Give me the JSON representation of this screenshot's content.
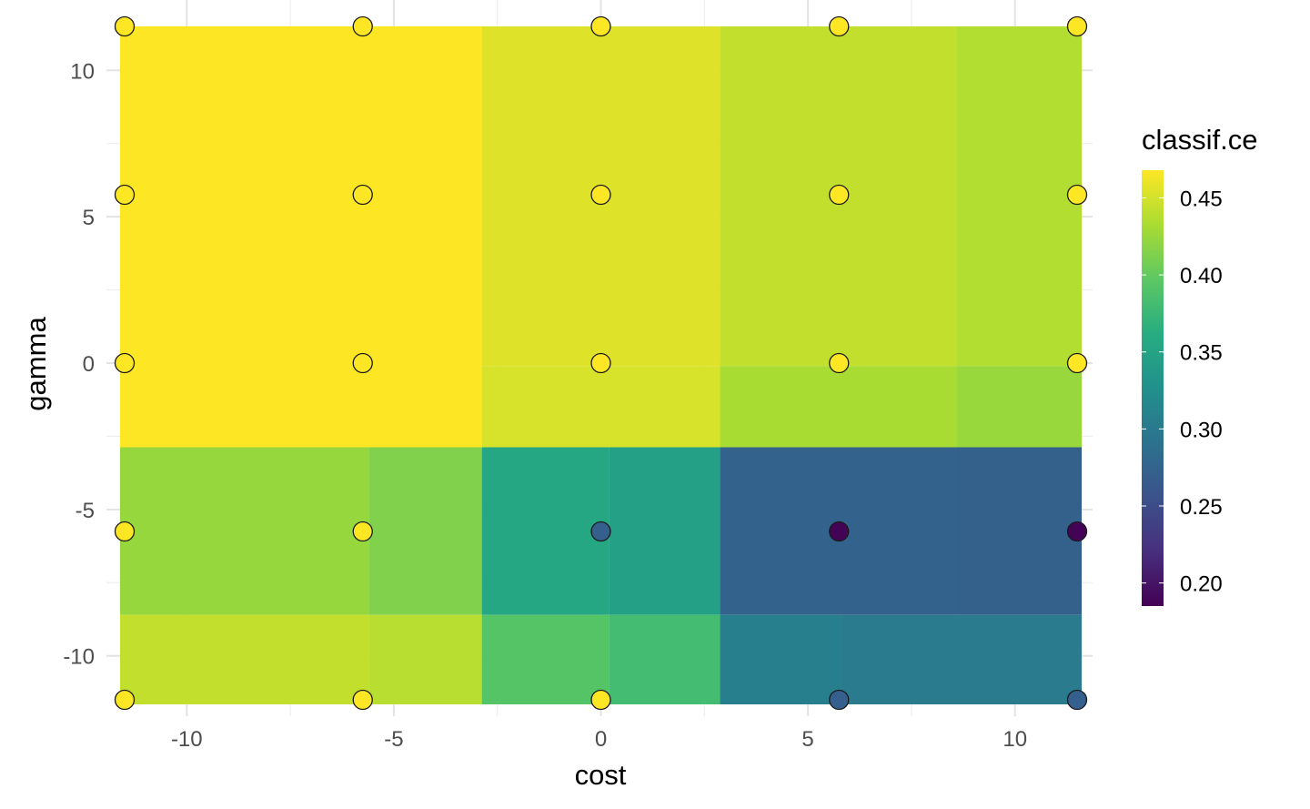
{
  "chart_data": {
    "type": "heatmap",
    "title": "",
    "xlabel": "cost",
    "ylabel": "gamma",
    "xlim": [
      -11.5,
      11.5
    ],
    "ylim": [
      -11.5,
      11.5
    ],
    "x_ticks": [
      -10,
      -5,
      0,
      5,
      10
    ],
    "y_ticks": [
      -10,
      -5,
      0,
      5,
      10
    ],
    "x_tick_labels": [
      "-10",
      "-5",
      "0",
      "5",
      "10"
    ],
    "y_tick_labels": [
      "-10",
      "-5",
      "0",
      "5",
      "10"
    ],
    "grid": true,
    "legend": {
      "title": "classif.ce",
      "position": "right",
      "range": [
        0.185,
        0.468
      ],
      "ticks": [
        0.2,
        0.25,
        0.3,
        0.35,
        0.4,
        0.45
      ],
      "tick_labels": [
        "0.20",
        "0.25",
        "0.30",
        "0.35",
        "0.40",
        "0.45"
      ],
      "palette": "viridis"
    },
    "tiles": [
      {
        "x": [
          -11.5,
          -2.875
        ],
        "y": [
          -2.875,
          11.5
        ],
        "value": 0.468
      },
      {
        "x": [
          -2.875,
          2.875
        ],
        "y": [
          -0.1,
          11.5
        ],
        "value": 0.455
      },
      {
        "x": [
          -2.875,
          2.875
        ],
        "y": [
          -2.875,
          -0.1
        ],
        "value": 0.452
      },
      {
        "x": [
          2.875,
          8.6
        ],
        "y": [
          -0.1,
          11.5
        ],
        "value": 0.443
      },
      {
        "x": [
          8.6,
          11.5
        ],
        "y": [
          -0.1,
          11.5
        ],
        "value": 0.436
      },
      {
        "x": [
          2.875,
          8.6
        ],
        "y": [
          -2.875,
          -0.1
        ],
        "value": 0.432
      },
      {
        "x": [
          8.6,
          11.5
        ],
        "y": [
          -2.875,
          -0.1
        ],
        "value": 0.425
      },
      {
        "x": [
          -11.5,
          -5.6
        ],
        "y": [
          -8.6,
          -2.875
        ],
        "value": 0.424
      },
      {
        "x": [
          -5.6,
          -2.875
        ],
        "y": [
          -8.6,
          -2.875
        ],
        "value": 0.414
      },
      {
        "x": [
          -2.875,
          0.2
        ],
        "y": [
          -8.6,
          -2.875
        ],
        "value": 0.355
      },
      {
        "x": [
          0.2,
          2.875
        ],
        "y": [
          -8.6,
          -2.875
        ],
        "value": 0.346
      },
      {
        "x": [
          2.875,
          8.6
        ],
        "y": [
          -8.6,
          -2.875
        ],
        "value": 0.275
      },
      {
        "x": [
          8.6,
          11.5
        ],
        "y": [
          -8.6,
          -2.875
        ],
        "value": 0.272
      },
      {
        "x": [
          -11.5,
          -5.6
        ],
        "y": [
          -11.5,
          -8.6
        ],
        "value": 0.443
      },
      {
        "x": [
          -5.6,
          -2.875
        ],
        "y": [
          -11.5,
          -8.6
        ],
        "value": 0.438
      },
      {
        "x": [
          -2.875,
          0.2
        ],
        "y": [
          -11.5,
          -8.6
        ],
        "value": 0.392
      },
      {
        "x": [
          0.2,
          2.875
        ],
        "y": [
          -11.5,
          -8.6
        ],
        "value": 0.381
      },
      {
        "x": [
          2.875,
          5.8
        ],
        "y": [
          -11.5,
          -8.6
        ],
        "value": 0.306
      },
      {
        "x": [
          5.8,
          11.5
        ],
        "y": [
          -11.5,
          -8.6
        ],
        "value": 0.302
      }
    ],
    "points": [
      {
        "x": -11.5,
        "y": 11.5,
        "value": 0.468
      },
      {
        "x": -5.75,
        "y": 11.5,
        "value": 0.468
      },
      {
        "x": 0,
        "y": 11.5,
        "value": 0.468
      },
      {
        "x": 5.75,
        "y": 11.5,
        "value": 0.468
      },
      {
        "x": 11.5,
        "y": 11.5,
        "value": 0.468
      },
      {
        "x": -11.5,
        "y": 5.75,
        "value": 0.468
      },
      {
        "x": -5.75,
        "y": 5.75,
        "value": 0.468
      },
      {
        "x": 0,
        "y": 5.75,
        "value": 0.468
      },
      {
        "x": 5.75,
        "y": 5.75,
        "value": 0.468
      },
      {
        "x": 11.5,
        "y": 5.75,
        "value": 0.468
      },
      {
        "x": -11.5,
        "y": 0,
        "value": 0.468
      },
      {
        "x": -5.75,
        "y": 0,
        "value": 0.468
      },
      {
        "x": 0,
        "y": 0,
        "value": 0.468
      },
      {
        "x": 5.75,
        "y": 0,
        "value": 0.468
      },
      {
        "x": 11.5,
        "y": 0,
        "value": 0.468
      },
      {
        "x": -11.5,
        "y": -5.75,
        "value": 0.468
      },
      {
        "x": -5.75,
        "y": -5.75,
        "value": 0.468
      },
      {
        "x": 0,
        "y": -5.75,
        "value": 0.27
      },
      {
        "x": 5.75,
        "y": -5.75,
        "value": 0.187
      },
      {
        "x": 11.5,
        "y": -5.75,
        "value": 0.187
      },
      {
        "x": -11.5,
        "y": -11.5,
        "value": 0.468
      },
      {
        "x": -5.75,
        "y": -11.5,
        "value": 0.468
      },
      {
        "x": 0,
        "y": -11.5,
        "value": 0.468
      },
      {
        "x": 5.75,
        "y": -11.5,
        "value": 0.27
      },
      {
        "x": 11.5,
        "y": -11.5,
        "value": 0.27
      }
    ]
  }
}
